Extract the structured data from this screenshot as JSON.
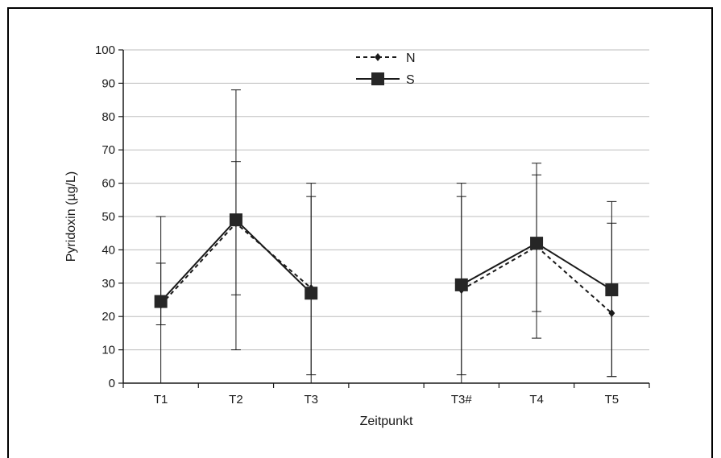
{
  "chart_data": {
    "type": "line",
    "categories": [
      "T1",
      "T2",
      "T3",
      "",
      "T3#",
      "T4",
      "T5"
    ],
    "xlabel": "Zeitpunkt",
    "ylabel": "Pyridoxin (µg/L)",
    "ylim": [
      0,
      100
    ],
    "yticks": [
      0,
      10,
      20,
      30,
      40,
      50,
      60,
      70,
      80,
      90,
      100
    ],
    "grid": true,
    "legend_position": "top-center",
    "series": [
      {
        "name": "N",
        "style": "dashed",
        "marker": "diamond",
        "color": "#1a1a1a",
        "points": [
          {
            "x": "T1",
            "y": 23.5,
            "err_low": 0,
            "err_high": 36
          },
          {
            "x": "T2",
            "y": 48,
            "err_low": 26.5,
            "err_high": 66.5
          },
          {
            "x": "T3",
            "y": 28.5,
            "err_low": 2.5,
            "err_high": 56
          },
          {
            "x": "T3#",
            "y": 28,
            "err_low": 2.5,
            "err_high": 56
          },
          {
            "x": "T4",
            "y": 41,
            "err_low": 21.5,
            "err_high": 62.5
          },
          {
            "x": "T5",
            "y": 21,
            "err_low": 2,
            "err_high": 48
          }
        ]
      },
      {
        "name": "S",
        "style": "solid",
        "marker": "square",
        "color": "#1a1a1a",
        "points": [
          {
            "x": "T1",
            "y": 24.5,
            "err_low": 17.5,
            "err_high": 50
          },
          {
            "x": "T2",
            "y": 49,
            "err_low": 10,
            "err_high": 88
          },
          {
            "x": "T3",
            "y": 27,
            "err_low": 0,
            "err_high": 60
          },
          {
            "x": "T3#",
            "y": 29.5,
            "err_low": 0,
            "err_high": 60
          },
          {
            "x": "T4",
            "y": 42,
            "err_low": 13.5,
            "err_high": 66
          },
          {
            "x": "T5",
            "y": 28,
            "err_low": 2,
            "err_high": 54.5
          }
        ]
      }
    ]
  }
}
